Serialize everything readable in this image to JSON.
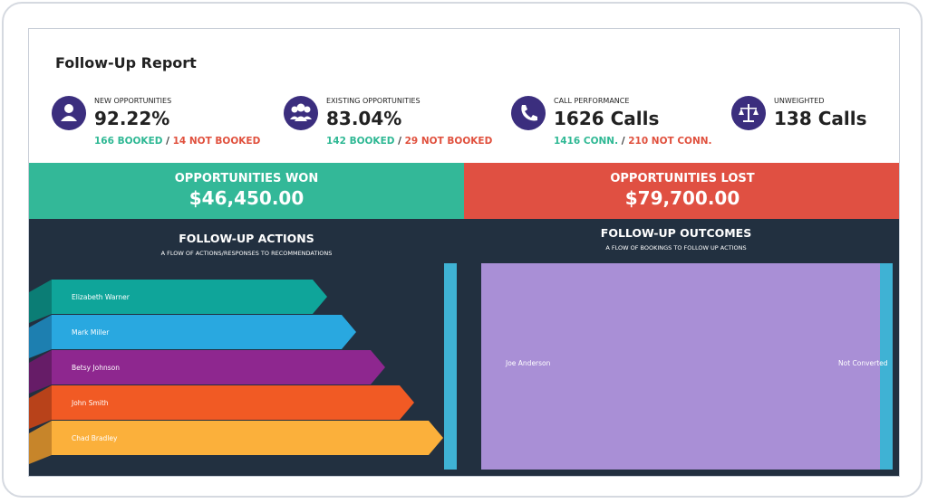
{
  "header": {
    "title": "Follow-Up Report"
  },
  "kpis": [
    {
      "label": "NEW OPPORTUNITIES",
      "value": "92.22%",
      "positive": "166 BOOKED",
      "separator": "/",
      "negative": "14 NOT BOOKED"
    },
    {
      "label": "EXISTING OPPORTUNITIES",
      "value": "83.04%",
      "positive": "142 BOOKED",
      "separator": "/",
      "negative": "29 NOT BOOKED"
    },
    {
      "label": "CALL PERFORMANCE",
      "value": "1626 Calls",
      "positive": "1416 CONN.",
      "separator": "/",
      "negative": "210 NOT CONN."
    },
    {
      "label": "UNWEIGHTED",
      "value": "138 Calls"
    }
  ],
  "totals": {
    "won": {
      "label": "OPPORTUNITIES WON",
      "value": "$46,450.00"
    },
    "lost": {
      "label": "OPPORTUNITIES LOST",
      "value": "$79,700.00"
    }
  },
  "actions": {
    "title": "FOLLOW-UP ACTIONS",
    "subtitle": "A FLOW OF ACTIONS/RESPONSES TO RECOMMENDATIONS",
    "items": [
      "Elizabeth Warner",
      "Mark Miller",
      "Betsy Johnson",
      "John Smith",
      "Chad Bradley"
    ]
  },
  "outcomes": {
    "title": "FOLLOW-UP OUTCOMES",
    "subtitle": "A FLOW OF BOOKINGS TO FOLLOW UP ACTIONS",
    "source": "Joe Anderson",
    "target": "Not Converted"
  }
}
